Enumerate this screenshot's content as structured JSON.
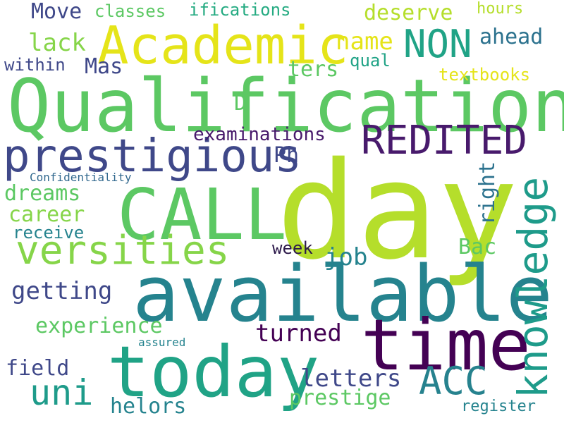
{
  "word_cloud": {
    "words": {
      "qualifications": "Qualifications",
      "day": "day",
      "available": "available",
      "time": "time",
      "today": "today",
      "call": "CALL",
      "academic": "Academic",
      "prestigious": "prestigious",
      "redited": "REDITED",
      "non": "NON",
      "versities": "versities",
      "uni": "uni",
      "acc": "ACC",
      "knowledge": "knowledge",
      "move": "Move",
      "classes": "classes",
      "ifications": "ifications",
      "deserve": "deserve",
      "hours": "hours",
      "lack": "lack",
      "name": "name",
      "ahead": "ahead",
      "mas": "Mas",
      "within": "within",
      "qual": "qual",
      "ters": "ters",
      "textbooks": "textbooks",
      "d": "D",
      "examinations": "examinations",
      "ph": "Ph",
      "confidentiality": "Confidentiality",
      "dreams": "dreams",
      "career": "career",
      "receive": "receive",
      "week": "week",
      "job": "job",
      "bac": "Bac",
      "right": "right",
      "getting": "getting",
      "experience": "experience",
      "turned": "turned",
      "assured": "assured",
      "field": "field",
      "letters": "letters",
      "prestige": "prestige",
      "helors": "helors",
      "register": "register"
    },
    "colors": {
      "background": "#ffffff",
      "dark_purple": "#440154",
      "indigo": "#3f4889",
      "blue_teal": "#25838e",
      "teal": "#20a386",
      "green": "#5cc863",
      "light_green": "#86d549",
      "lime": "#b5de2b",
      "yellow": "#e5e419"
    }
  }
}
